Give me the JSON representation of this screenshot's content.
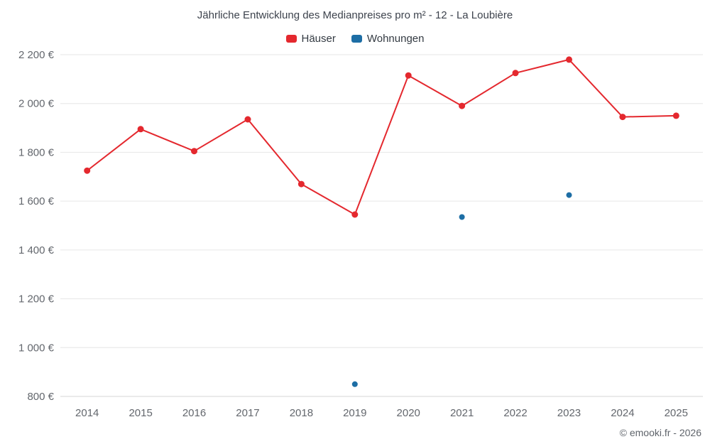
{
  "title": "Jährliche Entwicklung des Medianpreises pro m² - 12 - La Loubière",
  "legend": {
    "items": [
      {
        "label": "Häuser",
        "color": "#e4282e"
      },
      {
        "label": "Wohnungen",
        "color": "#1d6ea5"
      }
    ]
  },
  "footer": {
    "copyright": "© emooki.fr - 2026"
  },
  "chart_data": {
    "type": "line",
    "title": "Jährliche Entwicklung des Medianpreises pro m² - 12 - La Loubière",
    "categories": [
      "2014",
      "2015",
      "2016",
      "2017",
      "2018",
      "2019",
      "2020",
      "2021",
      "2022",
      "2023",
      "2024",
      "2025"
    ],
    "series": [
      {
        "name": "Häuser",
        "color": "#e4282e",
        "marker_radius": 4.5,
        "values": [
          1725,
          1895,
          1805,
          1935,
          1670,
          1545,
          2115,
          1990,
          2125,
          2180,
          1945,
          1950
        ]
      },
      {
        "name": "Wohnungen",
        "color": "#1d6ea5",
        "marker_radius": 4,
        "values": [
          null,
          null,
          null,
          null,
          null,
          850,
          null,
          1535,
          null,
          1625,
          null,
          null
        ]
      }
    ],
    "ylim": [
      800,
      2200
    ],
    "ytick_values": [
      800,
      1000,
      1200,
      1400,
      1600,
      1800,
      2000,
      2200
    ],
    "ytick_labels": [
      "800 €",
      "1 000 €",
      "1 200 €",
      "1 400 €",
      "1 600 €",
      "1 800 €",
      "2 000 €",
      "2 200 €"
    ],
    "xlabel": "",
    "ylabel": "",
    "grid": "horizontal",
    "legend_position": "top"
  }
}
